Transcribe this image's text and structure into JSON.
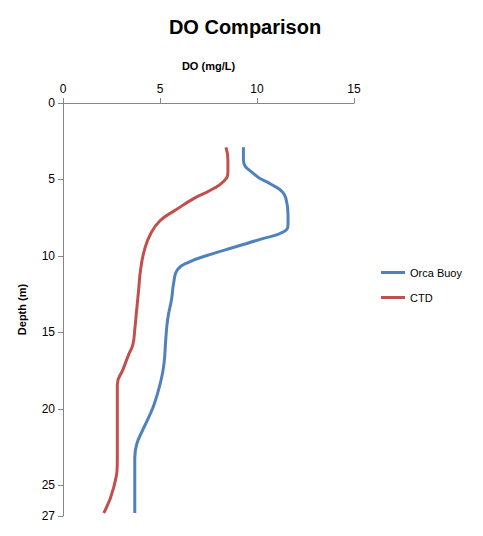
{
  "chart_data": {
    "type": "line",
    "title": "DO Comparison",
    "x_label": "DO (mg/L)",
    "y_label": "Depth (m)",
    "xlim": [
      0,
      15
    ],
    "xticks": [
      0,
      5,
      10,
      15
    ],
    "ylim": [
      27,
      0
    ],
    "yticks": [
      0,
      5,
      10,
      15,
      20,
      25
    ],
    "grid": false,
    "legend": "right",
    "series": [
      {
        "name": "Orca Buoy",
        "color": "#4f81bd",
        "x": [
          9.3,
          9.3,
          9.9,
          10.7,
          11.3,
          11.5,
          11.6,
          11.6,
          11.4,
          10.2,
          8.9,
          7.6,
          6.5,
          5.9,
          5.7,
          5.6,
          5.4,
          5.3,
          5.2,
          5.0,
          4.7,
          4.4,
          4.1,
          3.8,
          3.7,
          3.7,
          3.7
        ],
        "values": [
          2.9,
          3.7,
          4.7,
          5.3,
          5.8,
          6.3,
          7.3,
          7.9,
          8.4,
          8.9,
          9.4,
          9.9,
          10.4,
          10.9,
          11.8,
          12.8,
          14.1,
          15.4,
          17.1,
          18.4,
          19.7,
          20.6,
          21.4,
          22.3,
          23.2,
          24.5,
          26.8
        ]
      },
      {
        "name": "CTD",
        "color": "#c0504d",
        "x": [
          8.4,
          8.5,
          8.5,
          8.3,
          7.6,
          6.8,
          5.8,
          5.0,
          4.5,
          4.2,
          4.0,
          3.9,
          3.8,
          3.7,
          3.6,
          3.4,
          3.1,
          2.8,
          2.8,
          2.8,
          2.8,
          2.6,
          2.1
        ],
        "values": [
          2.9,
          3.7,
          4.5,
          5.1,
          5.7,
          6.2,
          7.0,
          7.7,
          8.6,
          9.6,
          10.9,
          12.2,
          13.5,
          14.8,
          15.8,
          16.4,
          17.4,
          18.4,
          19.3,
          21.3,
          23.2,
          25.2,
          26.8
        ]
      }
    ]
  }
}
